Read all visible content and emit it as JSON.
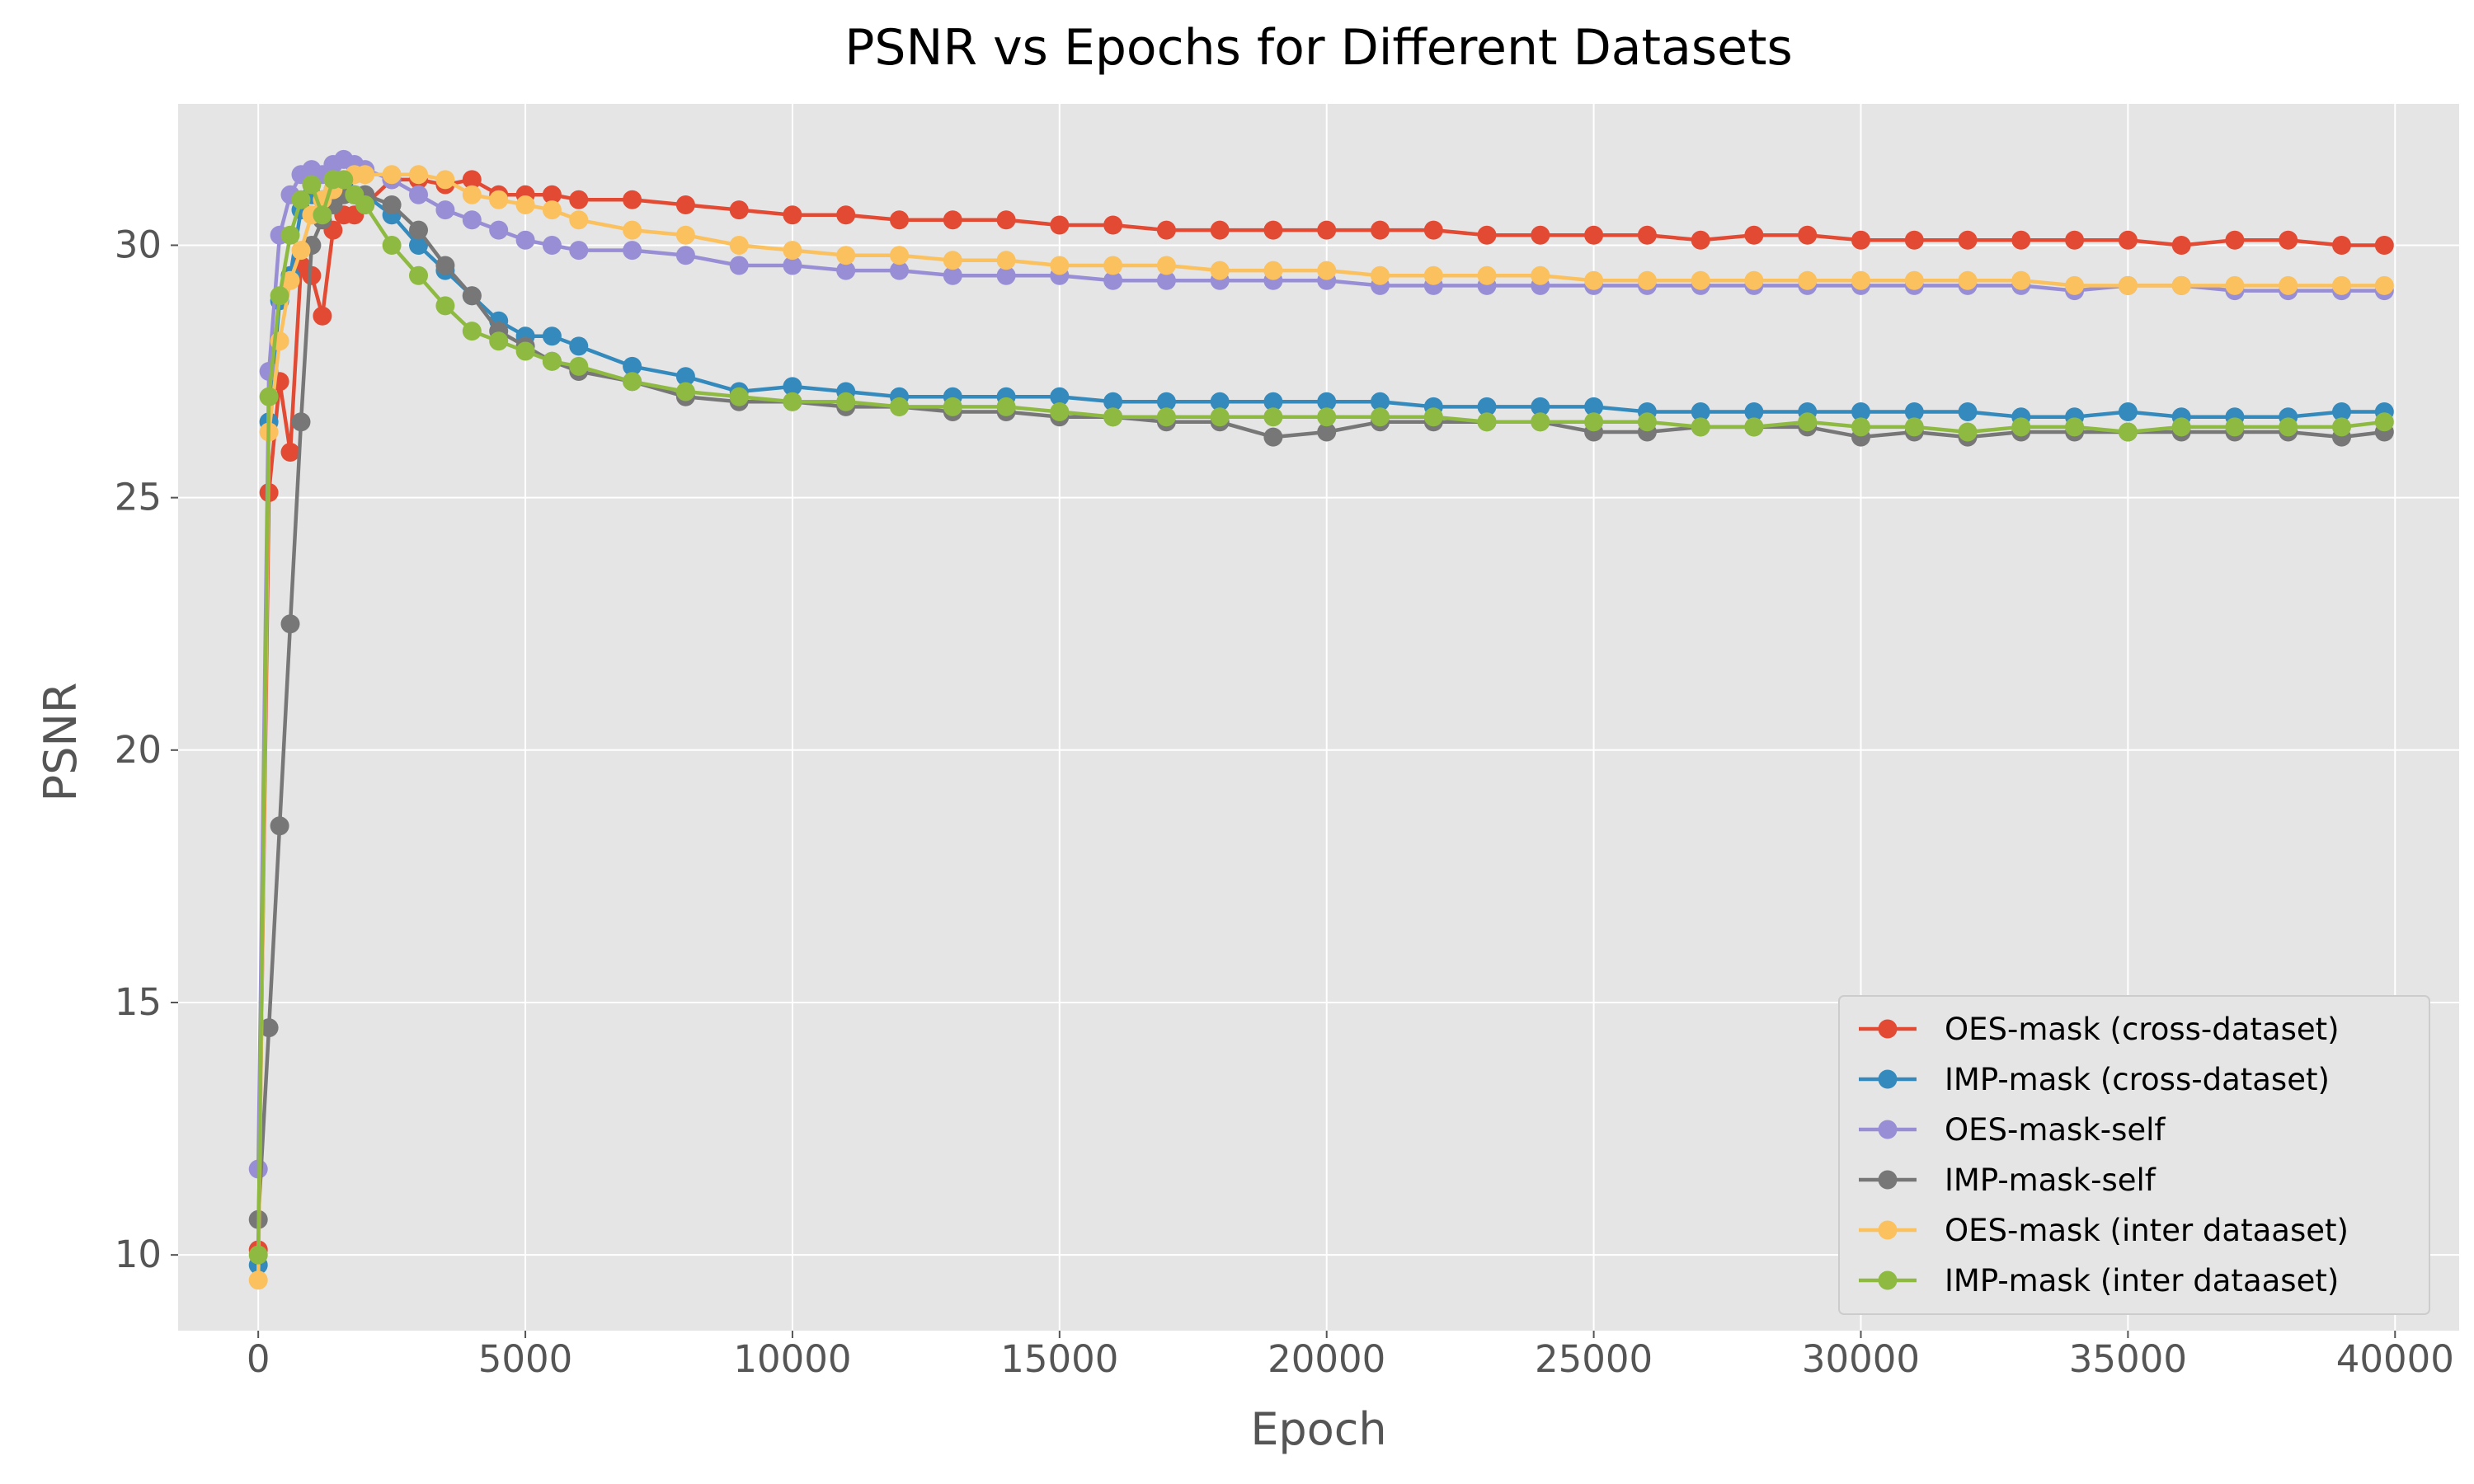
{
  "chart_data": {
    "type": "line",
    "title": "PSNR vs Epochs for Different Datasets",
    "xlabel": "Epoch",
    "ylabel": "PSNR",
    "xlim": [
      -1500,
      41200
    ],
    "ylim": [
      8.5,
      32.8
    ],
    "xticks": [
      0,
      5000,
      10000,
      15000,
      20000,
      25000,
      30000,
      35000,
      40000
    ],
    "yticks": [
      10,
      15,
      20,
      25,
      30
    ],
    "grid": true,
    "legend_position": "lower-right",
    "style": "ggplot",
    "x": [
      0,
      200,
      400,
      600,
      800,
      1000,
      1200,
      1400,
      1600,
      1800,
      2000,
      2500,
      3000,
      3500,
      4000,
      4500,
      5000,
      5500,
      6000,
      7000,
      8000,
      9000,
      10000,
      11000,
      12000,
      13000,
      14000,
      15000,
      16000,
      17000,
      18000,
      19000,
      20000,
      21000,
      22000,
      23000,
      24000,
      25000,
      26000,
      27000,
      28000,
      29000,
      30000,
      31000,
      32000,
      33000,
      34000,
      35000,
      36000,
      37000,
      38000,
      39000,
      39800
    ],
    "series": [
      {
        "name": "OES-mask (cross-dataset)",
        "color": "#E24A33",
        "values": [
          10.1,
          25.1,
          27.3,
          25.9,
          29.6,
          29.4,
          28.6,
          30.3,
          30.6,
          30.6,
          30.8,
          31.3,
          31.3,
          31.2,
          31.3,
          31.0,
          31.0,
          31.0,
          30.9,
          30.9,
          30.8,
          30.7,
          30.6,
          30.6,
          30.5,
          30.5,
          30.5,
          30.4,
          30.4,
          30.3,
          30.3,
          30.3,
          30.3,
          30.3,
          30.3,
          30.2,
          30.2,
          30.2,
          30.2,
          30.1,
          30.2,
          30.2,
          30.1,
          30.1,
          30.1,
          30.1,
          30.1,
          30.1,
          30.0,
          30.1,
          30.1,
          30.0,
          30.0
        ]
      },
      {
        "name": "IMP-mask (cross-dataset)",
        "color": "#348ABD",
        "values": [
          9.8,
          26.5,
          28.9,
          29.4,
          30.7,
          31.0,
          30.9,
          31.1,
          31.2,
          31.0,
          31.0,
          30.6,
          30.0,
          29.5,
          29.0,
          28.5,
          28.2,
          28.2,
          28.0,
          27.6,
          27.4,
          27.1,
          27.2,
          27.1,
          27.0,
          27.0,
          27.0,
          27.0,
          26.9,
          26.9,
          26.9,
          26.9,
          26.9,
          26.9,
          26.8,
          26.8,
          26.8,
          26.8,
          26.7,
          26.7,
          26.7,
          26.7,
          26.7,
          26.7,
          26.7,
          26.6,
          26.6,
          26.7,
          26.6,
          26.6,
          26.6,
          26.7,
          26.7
        ]
      },
      {
        "name": "OES-mask-self",
        "color": "#988ED5",
        "values": [
          11.7,
          27.5,
          30.2,
          31.0,
          31.4,
          31.5,
          31.4,
          31.6,
          31.7,
          31.6,
          31.5,
          31.3,
          31.0,
          30.7,
          30.5,
          30.3,
          30.1,
          30.0,
          29.9,
          29.9,
          29.8,
          29.6,
          29.6,
          29.5,
          29.5,
          29.4,
          29.4,
          29.4,
          29.3,
          29.3,
          29.3,
          29.3,
          29.3,
          29.2,
          29.2,
          29.2,
          29.2,
          29.2,
          29.2,
          29.2,
          29.2,
          29.2,
          29.2,
          29.2,
          29.2,
          29.2,
          29.1,
          29.2,
          29.2,
          29.1,
          29.1,
          29.1,
          29.1
        ]
      },
      {
        "name": "IMP-mask-self",
        "color": "#777777",
        "values": [
          10.7,
          14.5,
          18.5,
          22.5,
          26.5,
          30.0,
          30.5,
          30.8,
          31.0,
          31.0,
          31.0,
          30.8,
          30.3,
          29.6,
          29.0,
          28.3,
          28.0,
          27.7,
          27.5,
          27.3,
          27.0,
          26.9,
          26.9,
          26.8,
          26.8,
          26.7,
          26.7,
          26.6,
          26.6,
          26.5,
          26.5,
          26.2,
          26.3,
          26.5,
          26.5,
          26.5,
          26.5,
          26.3,
          26.3,
          26.4,
          26.4,
          26.4,
          26.2,
          26.3,
          26.2,
          26.3,
          26.3,
          26.3,
          26.3,
          26.3,
          26.3,
          26.2,
          26.3
        ]
      },
      {
        "name": "OES-mask (inter dataaset)",
        "color": "#FBC15E",
        "values": [
          9.5,
          26.3,
          28.1,
          29.3,
          29.9,
          30.6,
          30.9,
          31.1,
          31.3,
          31.4,
          31.4,
          31.4,
          31.4,
          31.3,
          31.0,
          30.9,
          30.8,
          30.7,
          30.5,
          30.3,
          30.2,
          30.0,
          29.9,
          29.8,
          29.8,
          29.7,
          29.7,
          29.6,
          29.6,
          29.6,
          29.5,
          29.5,
          29.5,
          29.4,
          29.4,
          29.4,
          29.4,
          29.3,
          29.3,
          29.3,
          29.3,
          29.3,
          29.3,
          29.3,
          29.3,
          29.3,
          29.2,
          29.2,
          29.2,
          29.2,
          29.2,
          29.2,
          29.2
        ]
      },
      {
        "name": "IMP-mask (inter dataaset)",
        "color": "#8EBA42",
        "values": [
          10.0,
          27.0,
          29.0,
          30.2,
          30.9,
          31.2,
          30.6,
          31.3,
          31.3,
          31.0,
          30.8,
          30.0,
          29.4,
          28.8,
          28.3,
          28.1,
          27.9,
          27.7,
          27.6,
          27.3,
          27.1,
          27.0,
          26.9,
          26.9,
          26.8,
          26.8,
          26.8,
          26.7,
          26.6,
          26.6,
          26.6,
          26.6,
          26.6,
          26.6,
          26.6,
          26.5,
          26.5,
          26.5,
          26.5,
          26.4,
          26.4,
          26.5,
          26.4,
          26.4,
          26.3,
          26.4,
          26.4,
          26.3,
          26.4,
          26.4,
          26.4,
          26.4,
          26.5
        ]
      }
    ]
  }
}
